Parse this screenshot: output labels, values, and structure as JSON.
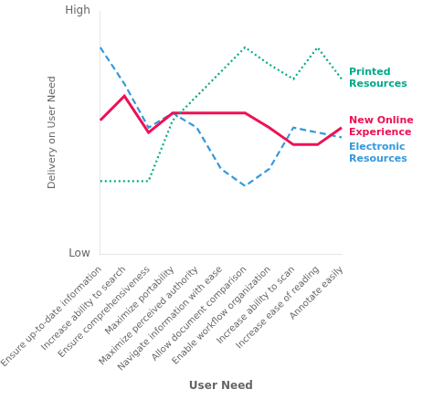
{
  "chart_data": {
    "type": "line",
    "xlabel": "User Need",
    "ylabel": "Delivery on User Need",
    "categories": [
      "Ensure up-to-date information",
      "Increase ability to search",
      "Ensure comprehensiveness",
      "Maximize portability",
      "Maximize perceived authority",
      "Navigate information with ease",
      "Allow document comparison",
      "Enable workflow organization",
      "Increase ability to scan",
      "Increase ease of reading",
      "Annotate easily"
    ],
    "series": [
      {
        "name": "Printed\nResources",
        "color": "#00aa88",
        "line_style": "dotted",
        "values": [
          3.0,
          3.0,
          3.0,
          5.5,
          6.5,
          7.5,
          8.5,
          7.8,
          7.2,
          8.5,
          7.2
        ]
      },
      {
        "name": "New Online\nExperience",
        "color": "#ee1155",
        "line_style": "solid",
        "values": [
          5.5,
          6.5,
          5.0,
          5.8,
          5.8,
          5.8,
          5.8,
          5.2,
          4.5,
          4.5,
          5.2
        ]
      },
      {
        "name": "Electronic\nResources",
        "color": "#3399dd",
        "line_style": "dashed",
        "values": [
          8.5,
          7.0,
          5.2,
          5.8,
          5.2,
          3.5,
          2.8,
          3.5,
          5.2,
          5.0,
          4.8
        ]
      }
    ],
    "ylim": [
      0,
      10
    ],
    "yticks": [
      {
        "value": 0,
        "label": "Low"
      },
      {
        "value": 10,
        "label": "High"
      }
    ],
    "grid": false
  }
}
